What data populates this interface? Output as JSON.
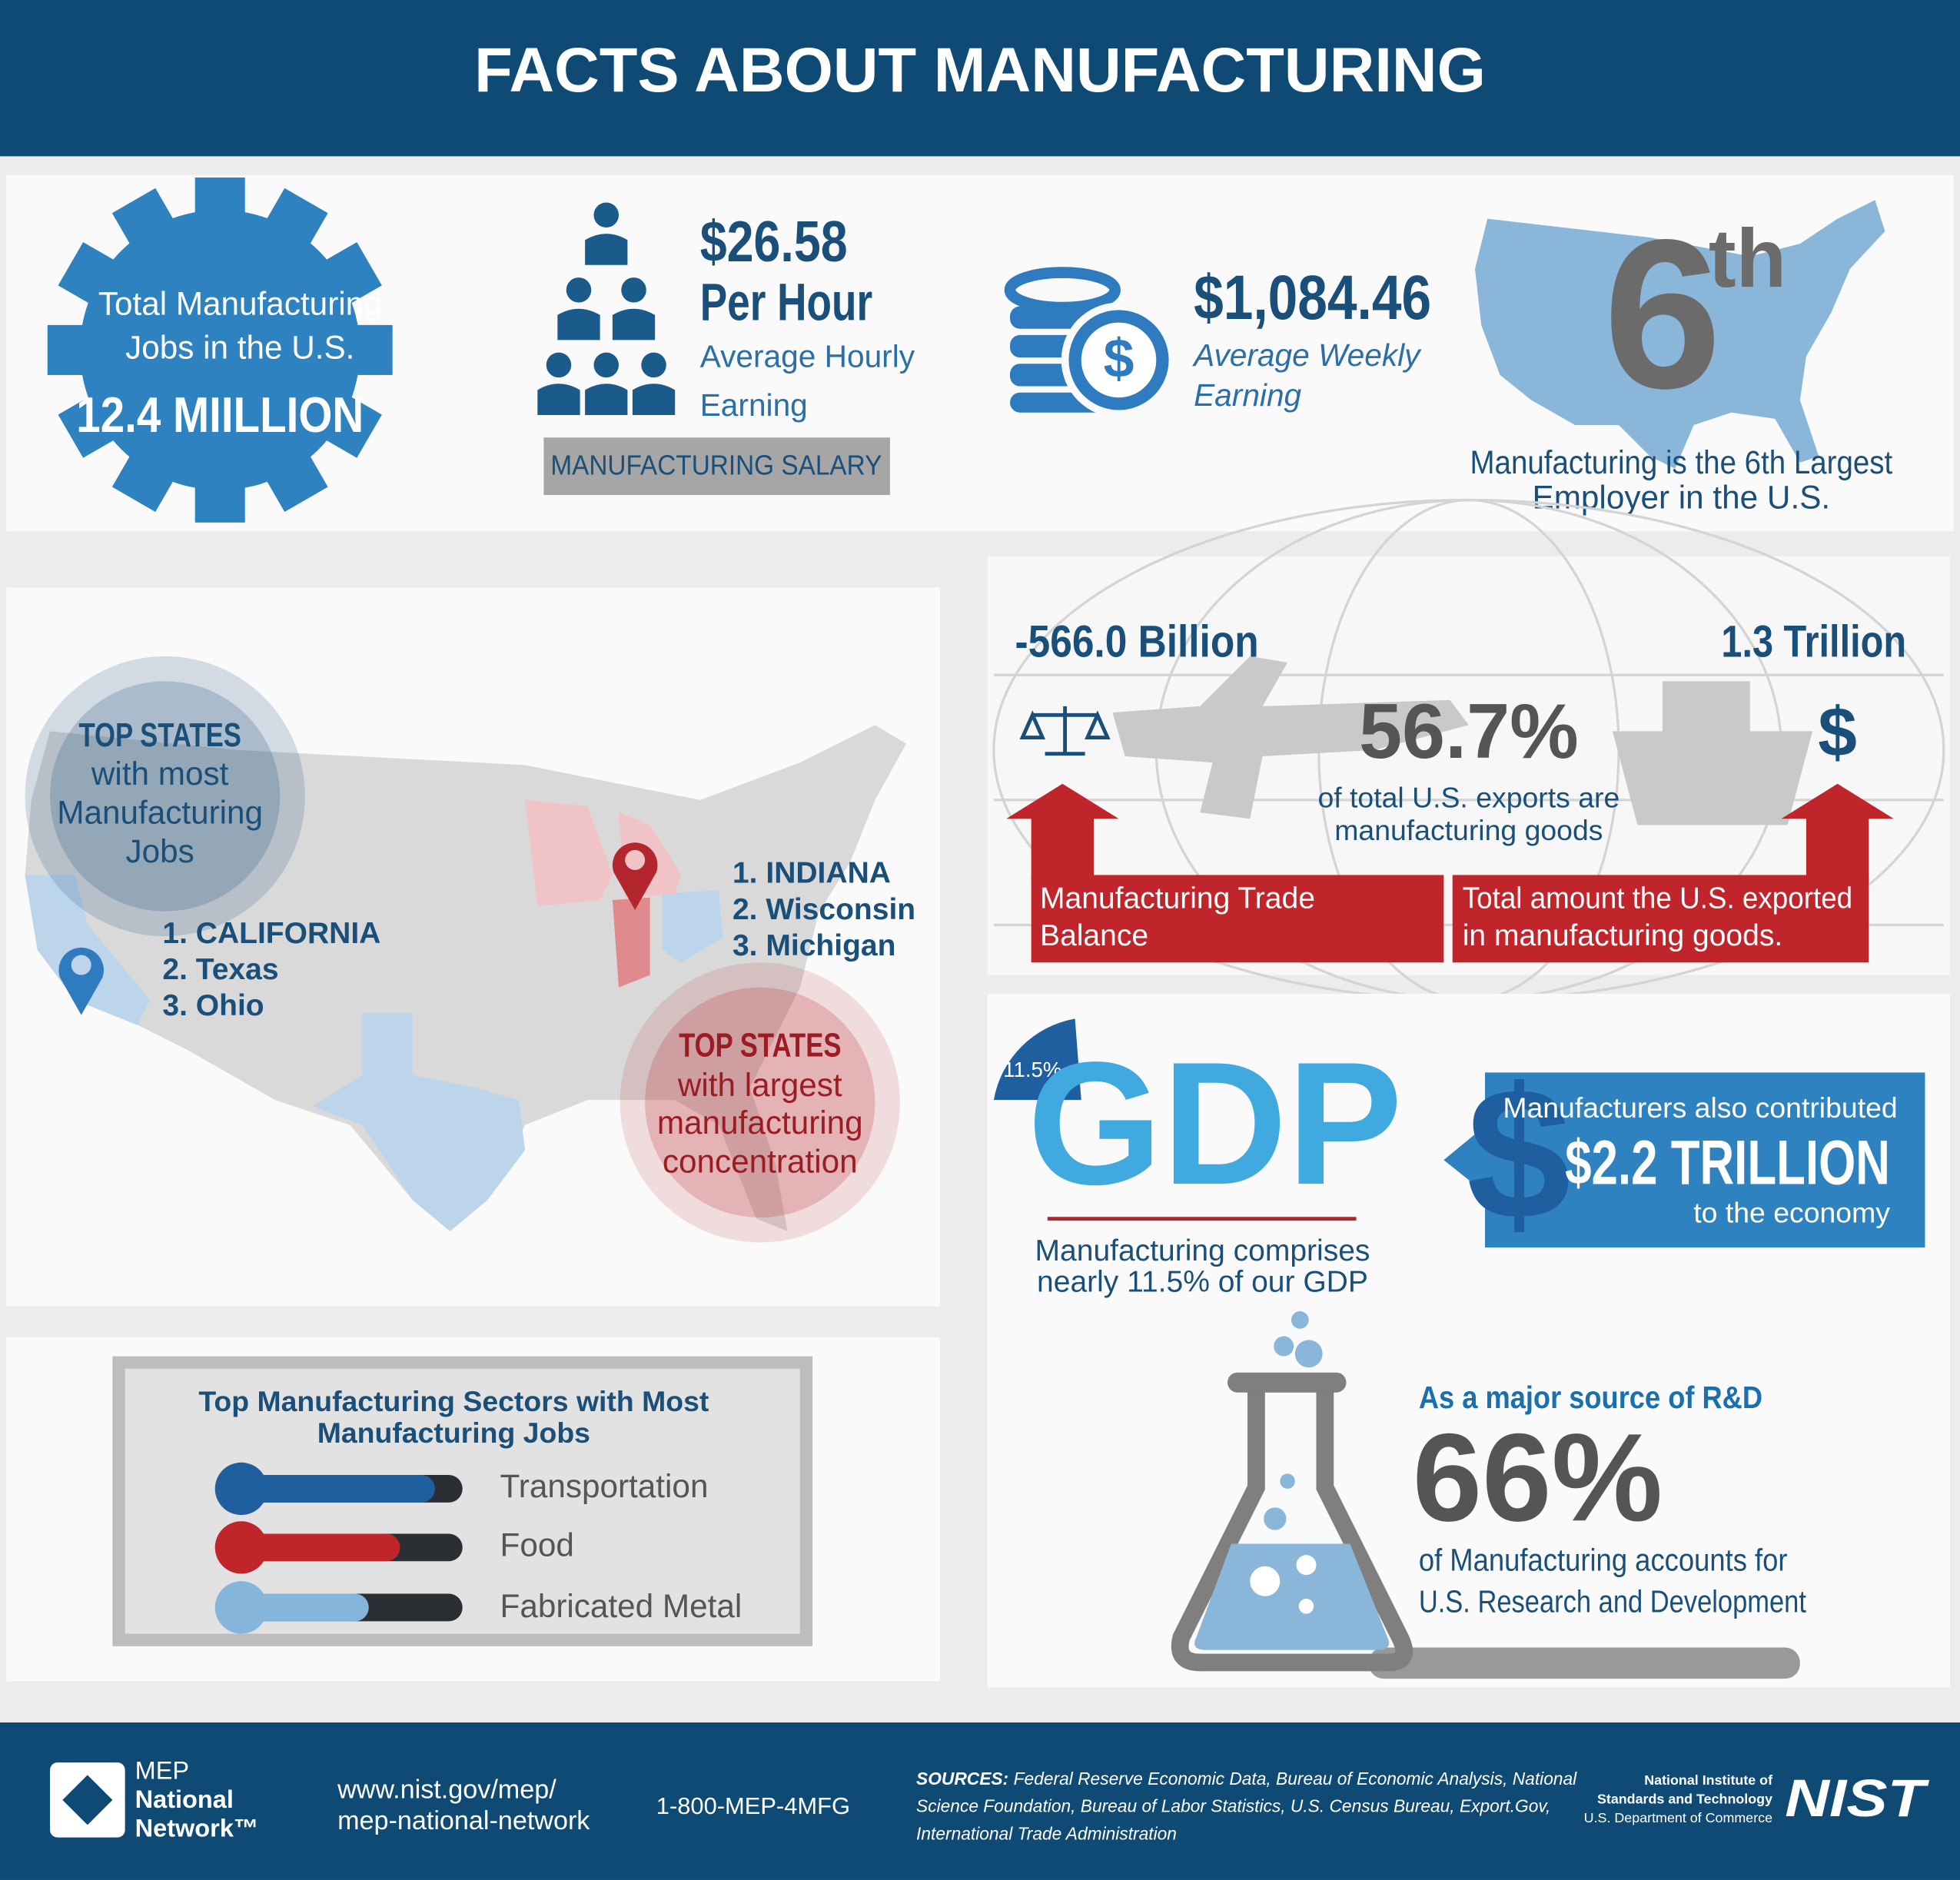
{
  "header": {
    "title": "FACTS ABOUT MANUFACTURING"
  },
  "jobs": {
    "label": [
      "Total Manufacturing",
      "Jobs in the U.S."
    ],
    "value": "12.4 MIILLION"
  },
  "salary": {
    "amount": "$26.58",
    "unit": "Per Hour",
    "caption": [
      "Average Hourly",
      "Earning"
    ],
    "label": "MANUFACTURING SALARY"
  },
  "weekly": {
    "icon": "$",
    "amount": "$1,084.46",
    "caption": [
      "Average Weekly",
      "Earning"
    ]
  },
  "employer": {
    "rank": "6",
    "suffix": "th",
    "caption": [
      "Manufacturing is the 6th Largest",
      "Employer in the U.S."
    ]
  },
  "states": {
    "most": {
      "heading": "TOP STATES",
      "caption": [
        "with most",
        "Manufacturing",
        "Jobs"
      ],
      "list": [
        "1. CALIFORNIA",
        "2. Texas",
        "3. Ohio"
      ]
    },
    "concentration": {
      "heading": "TOP STATES",
      "caption": [
        "with largest",
        "manufacturing",
        "concentration"
      ],
      "list": [
        "1. INDIANA",
        "2. Wisconsin",
        "3. Michigan"
      ]
    }
  },
  "trade": {
    "balance": "-566.0 Billion",
    "balance_label": [
      "Manufacturing Trade",
      "Balance"
    ],
    "exports": "1.3 Trillion",
    "exports_label": [
      "Total amount the U.S. exported",
      "in manufacturing goods."
    ],
    "icon": "$",
    "share": "56.7%",
    "share_caption": [
      "of total U.S. exports are",
      "manufacturing goods"
    ]
  },
  "gdp": {
    "share": "11.5%",
    "word": "GDP",
    "caption": [
      "Manufacturing comprises",
      "nearly 11.5% of our GDP"
    ],
    "contribution": {
      "icon": "$",
      "lead": "Manufacturers also contributed",
      "amount": "$2.2 TRILLION",
      "tail": "to the economy"
    }
  },
  "rnd": {
    "lead": "As a major source of R&D",
    "share": "66%",
    "caption": [
      "of Manufacturing accounts for",
      "U.S. Research and Development"
    ]
  },
  "sectors": {
    "title": [
      "Top Manufacturing Sectors with Most",
      "Manufacturing Jobs"
    ],
    "items": [
      "Transportation",
      "Food",
      "Fabricated Metal"
    ]
  },
  "footer": {
    "brand": [
      "MEP",
      "National",
      "Network™"
    ],
    "url": [
      "www.nist.gov/mep/",
      "mep-national-network"
    ],
    "phone": "1-800-MEP-4MFG",
    "sources_label": "SOURCES:",
    "sources": [
      "Federal Reserve Economic Data, Bureau of Economic Analysis, National",
      "Science Foundation, Bureau of Labor Statistics, U.S. Census Bureau, Export.Gov,",
      "International Trade Administration"
    ],
    "nist": [
      "National Institute of",
      "Standards and Technology",
      "U.S. Department of Commerce"
    ],
    "nist_logo": "NIST"
  }
}
